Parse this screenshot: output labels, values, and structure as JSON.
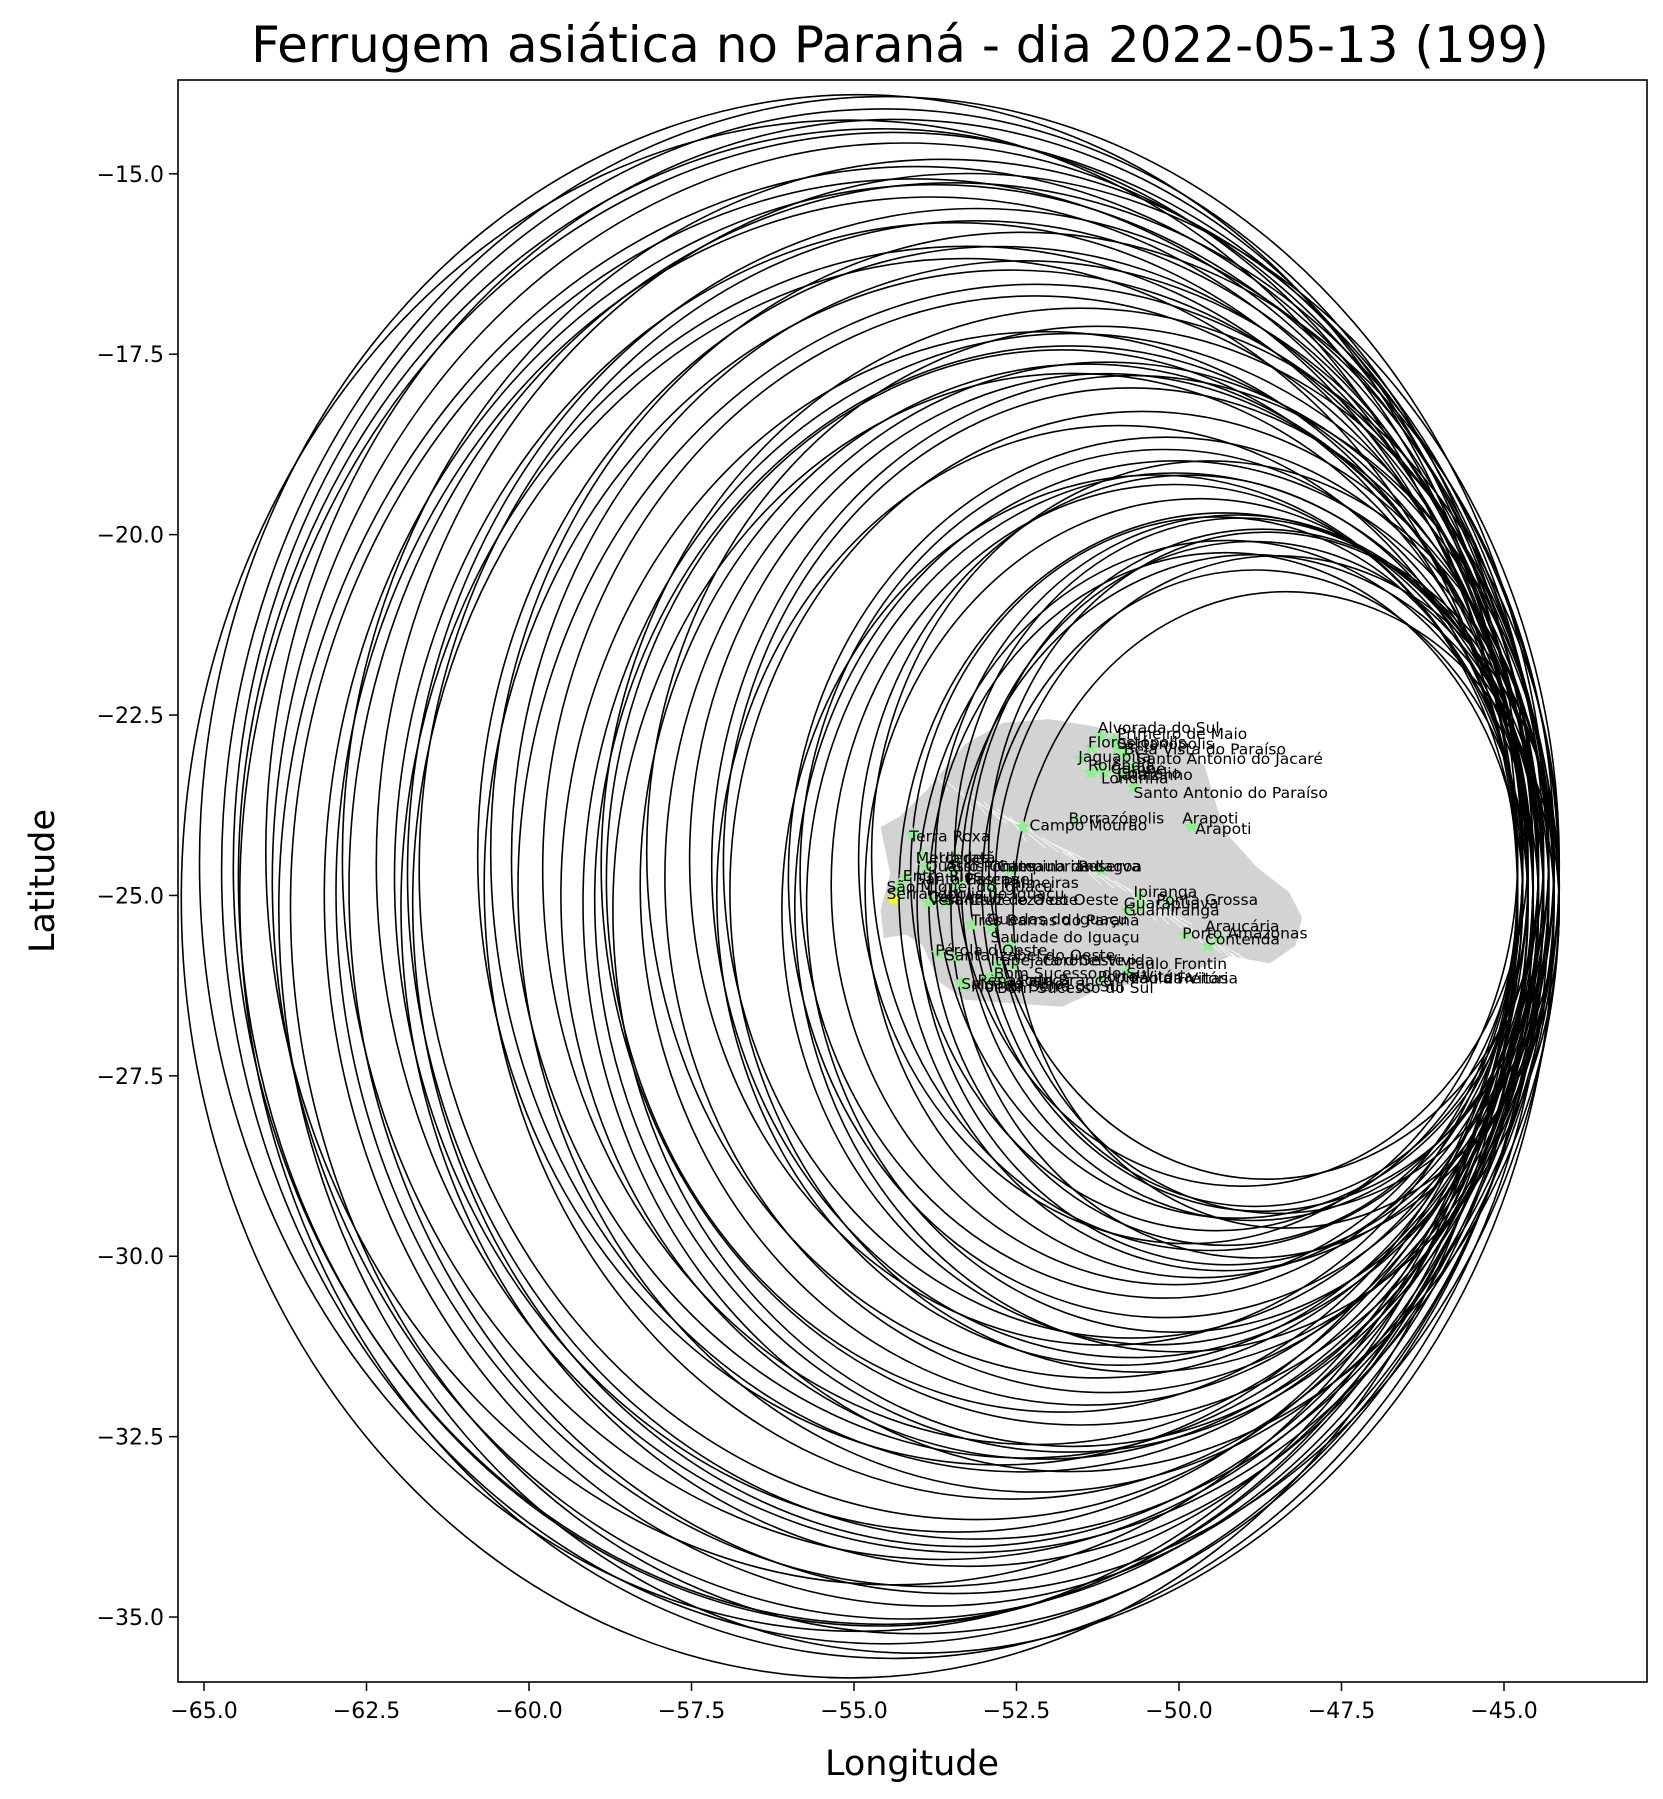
{
  "chart_data": {
    "type": "scatter",
    "title": "Ferrugem asiática no Paraná - dia 2022-05-13 (199)",
    "xlabel": "Longitude",
    "ylabel": "Latitude",
    "xlim": [
      -65.4,
      -42.8
    ],
    "ylim": [
      -35.9,
      -13.7
    ],
    "xticks": [
      -65.0,
      -62.5,
      -60.0,
      -57.5,
      -55.0,
      -52.5,
      -50.0,
      -47.5,
      -45.0
    ],
    "yticks": [
      -15.0,
      -17.5,
      -20.0,
      -22.5,
      -25.0,
      -27.5,
      -30.0,
      -32.5,
      -35.0
    ],
    "xtick_labels": [
      "−65.0",
      "−62.5",
      "−60.0",
      "−57.5",
      "−55.0",
      "−52.5",
      "−50.0",
      "−47.5",
      "−45.0"
    ],
    "ytick_labels": [
      "−15.0",
      "−17.5",
      "−20.0",
      "−22.5",
      "−25.0",
      "−27.5",
      "−30.0",
      "−32.5",
      "−35.0"
    ],
    "grid": false,
    "colors": {
      "circles": "#000000",
      "state_fill": "#d3d3d3",
      "occurrence_marker": "#90ee90",
      "highlight_marker": "#ffff00"
    },
    "circle_radius_deg": [
      4.2,
      4.5,
      5.0,
      5.6,
      6.2,
      6.8,
      7.3,
      7.9,
      8.5,
      9.1,
      9.6,
      10.0
    ],
    "circle_center_lon_range": [
      -55.9,
      -44.6
    ],
    "circle_center_lat_range": [
      -25.2,
      -24.4
    ],
    "circle_count": 62,
    "occurrences": [
      {
        "name": "Terra Roxa",
        "lon": -54.1,
        "lat": -24.15
      },
      {
        "name": "Mercedes",
        "lon": -53.95,
        "lat": -24.45
      },
      {
        "name": "Ubiratã",
        "lon": -53.4,
        "lat": -24.5
      },
      {
        "name": "Quatro Pontes",
        "lon": -53.9,
        "lat": -24.6
      },
      {
        "name": "Assis Chateaubriand",
        "lon": -53.5,
        "lat": -24.65
      },
      {
        "name": "Campina da Lagoa",
        "lon": -52.6,
        "lat": -24.65
      },
      {
        "name": "Reserva",
        "lon": -51.2,
        "lat": -24.65
      },
      {
        "name": "Entre Rios do Oeste",
        "lon": -54.2,
        "lat": -24.75
      },
      {
        "name": "Santa Helena",
        "lon": -54.3,
        "lat": -24.85
      },
      {
        "name": "Cascavel",
        "lon": -53.4,
        "lat": -24.85
      },
      {
        "name": "Palmeiras",
        "lon": -52.9,
        "lat": -24.85
      },
      {
        "name": "São Miguel do Iguaçu",
        "lon": -54.3,
        "lat": -24.95
      },
      {
        "name": "Serranópolis do Iguaçu",
        "lon": -54.4,
        "lat": -25.05
      },
      {
        "name": "Céu Azul",
        "lon": -53.8,
        "lat": -25.05
      },
      {
        "name": "Vera Cruz do Oeste",
        "lon": -53.85,
        "lat": -25.1
      },
      {
        "name": "Santa Tereza do Oeste",
        "lon": -53.6,
        "lat": -25.1
      },
      {
        "name": "Ipiranga",
        "lon": -50.6,
        "lat": -25.0
      },
      {
        "name": "Ponta Grossa",
        "lon": -50.15,
        "lat": -25.1
      },
      {
        "name": "Guarapuava",
        "lon": -50.6,
        "lat": -25.15
      },
      {
        "name": "Guamiranga",
        "lon": -50.8,
        "lat": -25.2
      },
      {
        "name": "Três Barras do Paraná",
        "lon": -53.2,
        "lat": -25.4
      },
      {
        "name": "Quedas do Iguaçu",
        "lon": -52.9,
        "lat": -25.45
      },
      {
        "name": "Araucária",
        "lon": -49.4,
        "lat": -25.6
      },
      {
        "name": "Contenda",
        "lon": -49.55,
        "lat": -25.7
      },
      {
        "name": "Porto Amazonas",
        "lon": -49.9,
        "lat": -25.55
      },
      {
        "name": "Pato Branco",
        "lon": -52.7,
        "lat": -26.2
      },
      {
        "name": "Paulo Frontin",
        "lon": -50.8,
        "lat": -26.05
      },
      {
        "name": "Bom Sucesso do Sul",
        "lon": -52.8,
        "lat": -26.1
      },
      {
        "name": "Saudade do Iguaçu",
        "lon": -52.6,
        "lat": -25.7
      },
      {
        "name": "Itapejara d'Oeste",
        "lon": -52.8,
        "lat": -25.95
      },
      {
        "name": "Coronel Vivida",
        "lon": -52.55,
        "lat": -25.97
      },
      {
        "name": "Renascença",
        "lon": -52.95,
        "lat": -26.15
      },
      {
        "name": "Flor da Serra do Sul",
        "lon": -53.3,
        "lat": -26.25
      },
      {
        "name": "Porto Vitória",
        "lon": -51.2,
        "lat": -26.15
      },
      {
        "name": "Pérola d'Oeste",
        "lon": -53.7,
        "lat": -25.8
      },
      {
        "name": "Santa Izabel do Oeste",
        "lon": -53.45,
        "lat": -25.85
      },
      {
        "name": "Salgado Filho",
        "lon": -53.35,
        "lat": -26.2
      },
      {
        "name": "Campo Mourão",
        "lon": -52.4,
        "lat": -24.05
      },
      {
        "name": "Borrazópolis",
        "lon": -51.6,
        "lat": -23.95
      },
      {
        "name": "Arapoti",
        "lon": -49.8,
        "lat": -24.05
      },
      {
        "name": "Jaguapitã",
        "lon": -51.5,
        "lat": -23.1
      },
      {
        "name": "Rolândia",
        "lon": -51.35,
        "lat": -23.3
      },
      {
        "name": "Londrina",
        "lon": -51.15,
        "lat": -23.3
      },
      {
        "name": "Cambé",
        "lon": -51.25,
        "lat": -23.25
      },
      {
        "name": "Primeiro de Maio",
        "lon": -51.0,
        "lat": -22.85
      },
      {
        "name": "Alvorada do Sul",
        "lon": -51.2,
        "lat": -22.8
      },
      {
        "name": "Sertanópolis",
        "lon": -50.95,
        "lat": -22.95
      },
      {
        "name": "Florestópolis",
        "lon": -51.35,
        "lat": -22.95
      },
      {
        "name": "Bela Vista do Paraíso",
        "lon": -50.85,
        "lat": -23.05
      },
      {
        "name": "Santo Antonio do Paraíso",
        "lon": -50.7,
        "lat": -23.5
      },
      {
        "name": "Santo Antônio do Jacaré",
        "lon": -50.7,
        "lat": -23.2
      },
      {
        "name": "Cornélio",
        "lon": -50.9,
        "lat": -23.3
      }
    ],
    "labels": [
      {
        "text": "Alvorada do Sul",
        "lon": -51.25,
        "lat": -22.75
      },
      {
        "text": "Primeiro de Maio",
        "lon": -50.95,
        "lat": -22.83
      },
      {
        "text": "Florestópolis",
        "lon": -51.4,
        "lat": -22.95
      },
      {
        "text": "Sertanópolis",
        "lon": -50.95,
        "lat": -22.97
      },
      {
        "text": "Bela Vista do Paraíso",
        "lon": -50.85,
        "lat": -23.05
      },
      {
        "text": "Jaguapitã",
        "lon": -51.55,
        "lat": -23.15
      },
      {
        "text": "Santo Antônio do Jacaré",
        "lon": -50.65,
        "lat": -23.18
      },
      {
        "text": "Rolândia",
        "lon": -51.4,
        "lat": -23.27
      },
      {
        "text": "Cambé",
        "lon": -51.05,
        "lat": -23.32
      },
      {
        "text": "Cornélio",
        "lon": -50.95,
        "lat": -23.38
      },
      {
        "text": "Londrina",
        "lon": -51.2,
        "lat": -23.45
      },
      {
        "text": "Jataizinho",
        "lon": -50.95,
        "lat": -23.4
      },
      {
        "text": "Santo Antonio do Paraíso",
        "lon": -50.7,
        "lat": -23.65
      },
      {
        "text": "Borrazópolis",
        "lon": -51.7,
        "lat": -24.0
      },
      {
        "text": "Arapoti",
        "lon": -49.95,
        "lat": -24.0
      },
      {
        "text": "Campo Mourão",
        "lon": -52.3,
        "lat": -24.1
      },
      {
        "text": "Arapoti",
        "lon": -49.75,
        "lat": -24.15
      },
      {
        "text": "Terra Roxa",
        "lon": -54.15,
        "lat": -24.25
      },
      {
        "text": "Mercedes",
        "lon": -54.05,
        "lat": -24.55
      },
      {
        "text": "Ubiratã",
        "lon": -53.7,
        "lat": -24.55
      },
      {
        "text": "Quatro Pontes",
        "lon": -53.9,
        "lat": -24.67
      },
      {
        "text": "Assis Chateaubriand",
        "lon": -53.6,
        "lat": -24.67
      },
      {
        "text": "Campina da Lagoa",
        "lon": -52.8,
        "lat": -24.67
      },
      {
        "text": "Reserva",
        "lon": -51.55,
        "lat": -24.67
      },
      {
        "text": "Entre Rios",
        "lon": -54.25,
        "lat": -24.8
      },
      {
        "text": "Santa Helena",
        "lon": -54.05,
        "lat": -24.85
      },
      {
        "text": "Cascavel",
        "lon": -53.3,
        "lat": -24.85
      },
      {
        "text": "Palmeiras",
        "lon": -52.7,
        "lat": -24.9
      },
      {
        "text": "São Miguel do Iguaçu",
        "lon": -54.5,
        "lat": -24.95
      },
      {
        "text": "Serranópolis do Iguaçu",
        "lon": -54.5,
        "lat": -25.05
      },
      {
        "text": "Céu Azul",
        "lon": -53.85,
        "lat": -25.1
      },
      {
        "text": "Vera Cruz do Oeste",
        "lon": -53.85,
        "lat": -25.13
      },
      {
        "text": "Santa Tereza do Oeste",
        "lon": -53.6,
        "lat": -25.13
      },
      {
        "text": "Ipiranga",
        "lon": -50.7,
        "lat": -25.02
      },
      {
        "text": "Ponta Grossa",
        "lon": -50.35,
        "lat": -25.13
      },
      {
        "text": "Guarapuava",
        "lon": -50.85,
        "lat": -25.18
      },
      {
        "text": "Guamiranga",
        "lon": -50.85,
        "lat": -25.28
      },
      {
        "text": "Três Barras do Paraná",
        "lon": -53.2,
        "lat": -25.42
      },
      {
        "text": "Quedas do Iguaçu",
        "lon": -52.95,
        "lat": -25.4
      },
      {
        "text": "Araucária",
        "lon": -49.6,
        "lat": -25.5
      },
      {
        "text": "Porto Amazonas",
        "lon": -49.95,
        "lat": -25.6
      },
      {
        "text": "Contenda",
        "lon": -49.6,
        "lat": -25.68
      },
      {
        "text": "Saudade do Iguaçu",
        "lon": -52.9,
        "lat": -25.65
      },
      {
        "text": "Pérola d'Oeste",
        "lon": -53.75,
        "lat": -25.83
      },
      {
        "text": "Santa Izabel do Oeste",
        "lon": -53.6,
        "lat": -25.9
      },
      {
        "text": "Itapejara d'Oeste",
        "lon": -52.9,
        "lat": -25.97
      },
      {
        "text": "Coronel Vivida",
        "lon": -52.1,
        "lat": -25.97
      },
      {
        "text": "Paulo Frontin",
        "lon": -50.8,
        "lat": -26.02
      },
      {
        "text": "Bom Sucesso do Sul",
        "lon": -52.85,
        "lat": -26.15
      },
      {
        "text": "Porto Vitória",
        "lon": -51.25,
        "lat": -26.2
      },
      {
        "text": "União da Vitória",
        "lon": -51.0,
        "lat": -26.22
      },
      {
        "text": "Paula Freitas",
        "lon": -50.75,
        "lat": -26.22
      },
      {
        "text": "Renascença",
        "lon": -53.1,
        "lat": -26.25
      },
      {
        "text": "Pato Branco",
        "lon": -52.45,
        "lat": -26.25
      },
      {
        "text": "Flor da Serra do Sul",
        "lon": -53.2,
        "lat": -26.33
      },
      {
        "text": "Salgado Filho",
        "lon": -53.35,
        "lat": -26.3
      },
      {
        "text": "Bom Sucesso do Sul",
        "lon": -52.8,
        "lat": -26.35
      }
    ]
  }
}
